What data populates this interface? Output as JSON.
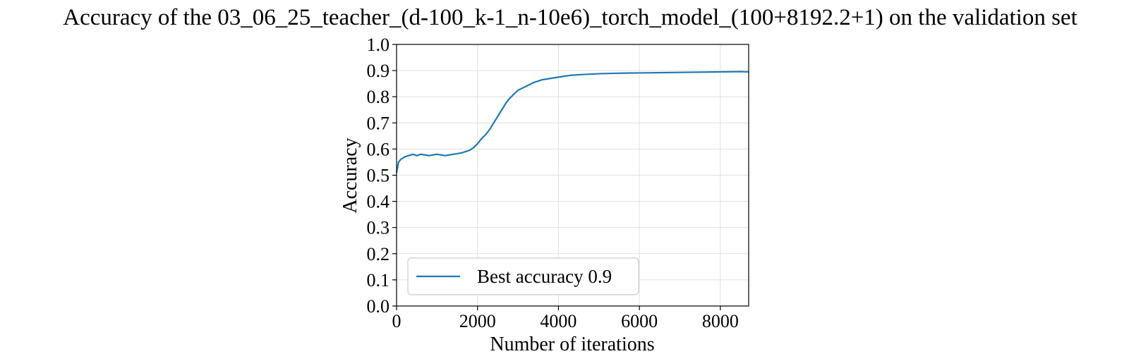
{
  "chart_data": {
    "type": "line",
    "title": "Accuracy of the 03_06_25_teacher_(d-100_k-1_n-10e6)_torch_model_(100+8192.2+1) on the validation set",
    "xlabel": "Number of iterations",
    "ylabel": "Accuracy",
    "xlim": [
      0,
      8700
    ],
    "ylim": [
      0.0,
      1.0
    ],
    "x_ticks": [
      "0",
      "2000",
      "4000",
      "6000",
      "8000"
    ],
    "x_tick_values": [
      0,
      2000,
      4000,
      6000,
      8000
    ],
    "y_ticks": [
      "0.0",
      "0.1",
      "0.2",
      "0.3",
      "0.4",
      "0.5",
      "0.6",
      "0.7",
      "0.8",
      "0.9",
      "1.0"
    ],
    "y_tick_values": [
      0.0,
      0.1,
      0.2,
      0.3,
      0.4,
      0.5,
      0.6,
      0.7,
      0.8,
      0.9,
      1.0
    ],
    "grid": true,
    "legend_position": "lower-left",
    "series": [
      {
        "name": "Best accuracy 0.9",
        "color": "#1f77b4",
        "x": [
          0,
          50,
          100,
          200,
          300,
          400,
          500,
          600,
          800,
          1000,
          1200,
          1400,
          1600,
          1800,
          1900,
          2000,
          2100,
          2200,
          2300,
          2400,
          2500,
          2600,
          2700,
          2800,
          2900,
          3000,
          3200,
          3400,
          3600,
          3800,
          4000,
          4300,
          4600,
          5000,
          5500,
          6000,
          6500,
          7000,
          7500,
          8000,
          8500,
          8700
        ],
        "y": [
          0.51,
          0.55,
          0.56,
          0.57,
          0.575,
          0.58,
          0.575,
          0.58,
          0.575,
          0.58,
          0.575,
          0.58,
          0.585,
          0.595,
          0.605,
          0.62,
          0.64,
          0.655,
          0.675,
          0.7,
          0.725,
          0.75,
          0.775,
          0.795,
          0.81,
          0.825,
          0.84,
          0.855,
          0.865,
          0.87,
          0.875,
          0.882,
          0.885,
          0.888,
          0.89,
          0.891,
          0.892,
          0.893,
          0.894,
          0.895,
          0.896,
          0.895
        ]
      }
    ]
  }
}
